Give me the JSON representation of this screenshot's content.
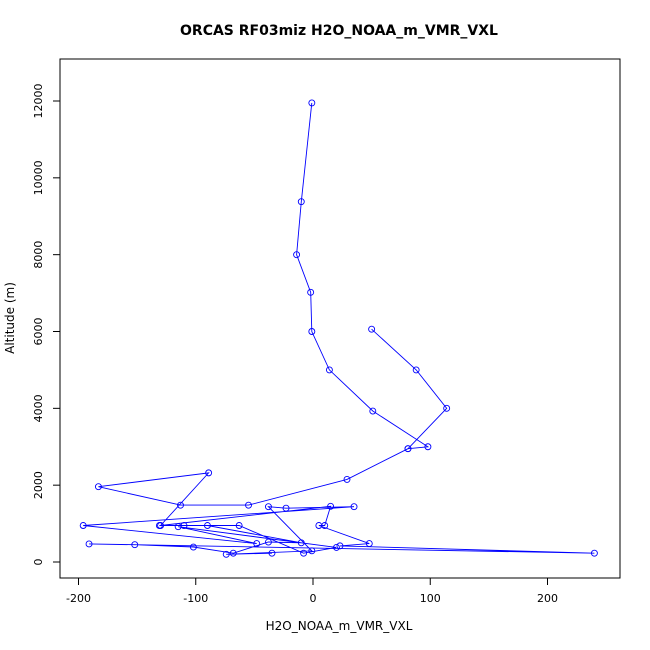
{
  "chart_data": {
    "type": "line",
    "title": "ORCAS RF03miz H2O_NOAA_m_VMR_VXL",
    "xlabel": "H2O_NOAA_m_VMR_VXL",
    "ylabel": "Altitude (m)",
    "xlim": [
      -200,
      250
    ],
    "ylim": [
      0,
      13000
    ],
    "xticks": [
      -200,
      -100,
      0,
      100,
      200
    ],
    "yticks": [
      0,
      2000,
      4000,
      6000,
      8000,
      10000,
      12000
    ],
    "grid": false,
    "marker": "open-circle",
    "series": [
      {
        "color": "#0000ff",
        "x": [
          -1,
          -10,
          -14,
          -2,
          -1,
          14,
          51,
          98,
          81,
          114,
          88,
          50
        ],
        "y": [
          11950,
          9380,
          8000,
          7020,
          6000,
          5000,
          3930,
          3000,
          2950,
          4000,
          5000,
          6060
        ]
      },
      {
        "color": "#0000ff",
        "x": [
          81,
          29,
          -55,
          -113,
          -183,
          -89,
          -130,
          15,
          10,
          5,
          48,
          23,
          240,
          -191,
          -152,
          -102,
          -68,
          -38,
          -10,
          -90,
          -110,
          -131,
          -63,
          -8,
          20,
          -115,
          -48,
          -196,
          35,
          -23,
          -38,
          -1,
          -74,
          -35
        ],
        "y": [
          2950,
          2150,
          1480,
          1480,
          1960,
          2320,
          950,
          1450,
          950,
          950,
          480,
          420,
          230,
          470,
          450,
          390,
          230,
          520,
          500,
          950,
          950,
          950,
          950,
          230,
          380,
          920,
          480,
          950,
          1440,
          1400,
          1440,
          290,
          200,
          230
        ]
      }
    ]
  }
}
